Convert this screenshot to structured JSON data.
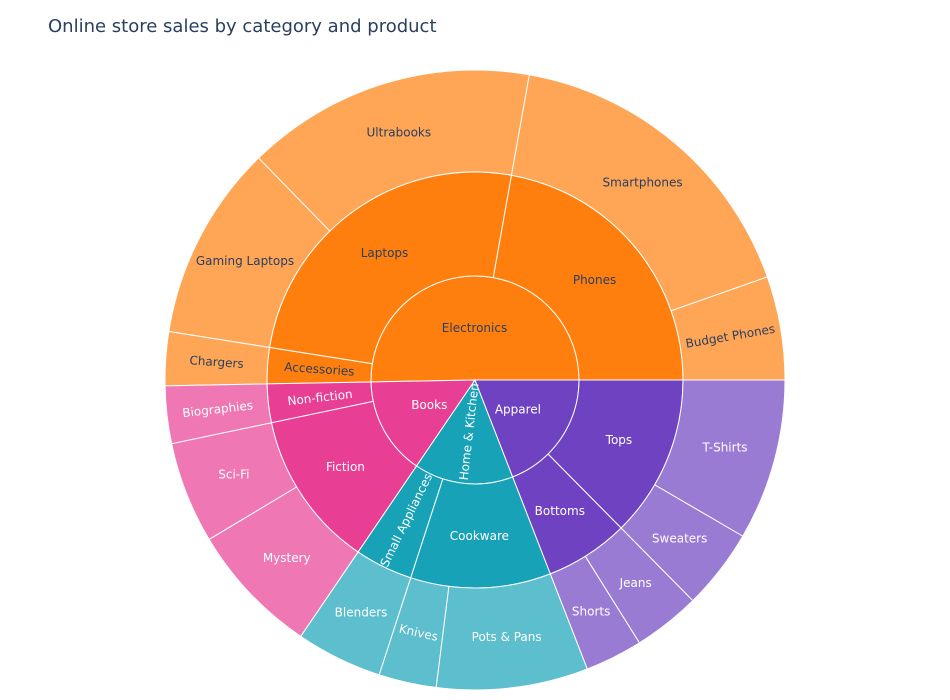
{
  "chart_data": {
    "type": "sunburst",
    "title": "Online store sales by category and product",
    "root": {
      "name": "Online store sales",
      "value": 1000
    },
    "tree": [
      {
        "name": "Electronics",
        "color": "#ff7f0e",
        "value": 503,
        "children": [
          {
            "name": "Phones",
            "value": 222,
            "children": [
              {
                "name": "Budget Phones",
                "value": 54
              },
              {
                "name": "Smartphones",
                "value": 168
              }
            ]
          },
          {
            "name": "Laptops",
            "value": 253,
            "children": [
              {
                "name": "Ultrabooks",
                "value": 151
              },
              {
                "name": "Gaming Laptops",
                "value": 102
              }
            ]
          },
          {
            "name": "Accessories",
            "value": 28,
            "children": [
              {
                "name": "Chargers",
                "value": 28
              }
            ]
          }
        ]
      },
      {
        "name": "Books",
        "color": "#e83e94",
        "value": 152,
        "children": [
          {
            "name": "Non-fiction",
            "value": 30,
            "children": [
              {
                "name": "Biographies",
                "value": 30
              }
            ]
          },
          {
            "name": "Fiction",
            "value": 122,
            "children": [
              {
                "name": "Sci-Fi",
                "value": 53
              },
              {
                "name": "Mystery",
                "value": 69
              }
            ]
          }
        ]
      },
      {
        "name": "Home & Kitchen",
        "color": "#17a2b8",
        "value": 154,
        "children": [
          {
            "name": "Small Appliances",
            "value": 45,
            "children": [
              {
                "name": "Blenders",
                "value": 45
              }
            ]
          },
          {
            "name": "Cookware",
            "value": 109,
            "children": [
              {
                "name": "Knives",
                "value": 30
              },
              {
                "name": "Pots & Pans",
                "value": 79
              }
            ]
          }
        ]
      },
      {
        "name": "Apparel",
        "color": "#6f42c1",
        "value": 191,
        "children": [
          {
            "name": "Bottoms",
            "value": 65,
            "children": [
              {
                "name": "Shorts",
                "value": 30
              },
              {
                "name": "Jeans",
                "value": 35
              }
            ]
          },
          {
            "name": "Tops",
            "value": 126,
            "children": [
              {
                "name": "Sweaters",
                "value": 42
              },
              {
                "name": "T-Shirts",
                "value": 84
              }
            ]
          }
        ]
      }
    ]
  }
}
